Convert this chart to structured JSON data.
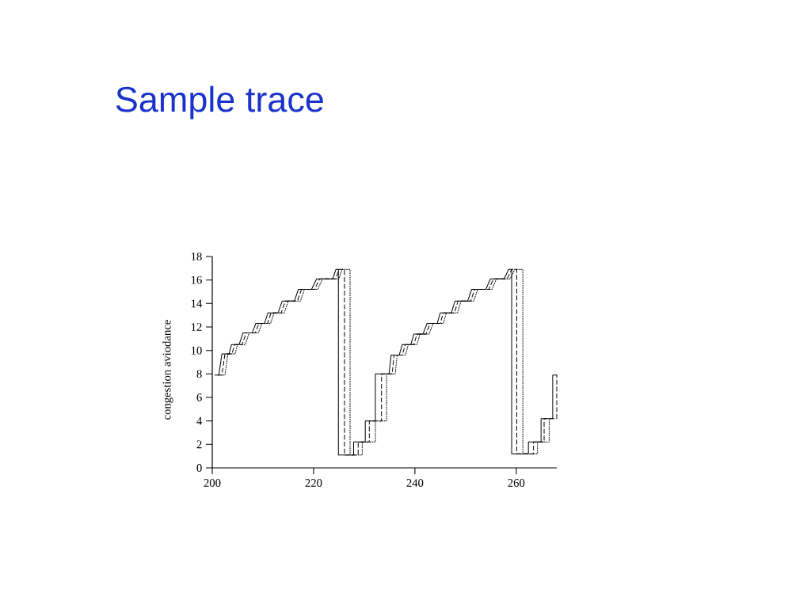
{
  "chart_data": {
    "type": "line",
    "title": "Sample trace",
    "ylabel": "congestion aviodance",
    "xlim": [
      200,
      268
    ],
    "ylim": [
      0,
      18
    ],
    "xticks": [
      200,
      220,
      240,
      260
    ],
    "yticks": [
      0,
      2,
      4,
      6,
      8,
      10,
      12,
      14,
      16,
      18
    ],
    "series": [
      {
        "color": "#000000",
        "line_style": "solid",
        "x": [
          200.5,
          201.3,
          201.9,
          203.3,
          203.8,
          205.3,
          206.1,
          207.9,
          208.6,
          210.3,
          211.0,
          213.0,
          213.8,
          216.2,
          217.0,
          219.6,
          220.6,
          223.8,
          224.4,
          224.9,
          224.9,
          227.9,
          227.9,
          230.2,
          230.2,
          232.2,
          232.2,
          234.9,
          235.3,
          236.9,
          237.5,
          239.2,
          239.8,
          241.6,
          242.4,
          244.4,
          245.0,
          247.2,
          247.9,
          250.4,
          251.2,
          254.0,
          254.9,
          257.6,
          258.5,
          259.1,
          259.1,
          262.4,
          262.4,
          264.9,
          264.9,
          267.2,
          267.2,
          268.0
        ],
        "values": [
          7.9,
          7.9,
          9.7,
          9.7,
          10.5,
          10.5,
          11.5,
          11.5,
          12.3,
          12.3,
          13.2,
          13.2,
          14.2,
          14.2,
          15.2,
          15.2,
          16.1,
          16.1,
          16.9,
          16.9,
          1.1,
          1.1,
          2.2,
          2.2,
          4.0,
          4.0,
          8.0,
          8.0,
          9.6,
          9.6,
          10.5,
          10.5,
          11.4,
          11.4,
          12.3,
          12.3,
          13.2,
          13.2,
          14.2,
          14.2,
          15.2,
          15.2,
          16.1,
          16.1,
          16.9,
          16.9,
          1.2,
          1.2,
          2.2,
          2.2,
          4.2,
          4.2,
          7.9,
          7.9
        ]
      },
      {
        "color": "#000000",
        "line_style": "dashed",
        "x": [
          201.1,
          201.9,
          202.5,
          203.9,
          204.4,
          205.9,
          206.7,
          208.5,
          209.2,
          210.9,
          211.6,
          213.6,
          214.4,
          216.8,
          217.6,
          220.2,
          221.2,
          224.4,
          225.0,
          226.1,
          226.1,
          228.8,
          228.8,
          231.0,
          231.0,
          233.4,
          233.4,
          235.5,
          235.9,
          237.5,
          238.1,
          239.8,
          240.4,
          242.2,
          243.0,
          245.0,
          245.6,
          247.8,
          248.5,
          251.0,
          251.8,
          254.6,
          255.5,
          258.2,
          259.1,
          260.1,
          260.1,
          263.4,
          263.4,
          265.5,
          265.5,
          268.0,
          268.0
        ],
        "values": [
          7.9,
          7.9,
          9.7,
          9.7,
          10.5,
          10.5,
          11.5,
          11.5,
          12.3,
          12.3,
          13.2,
          13.2,
          14.2,
          14.2,
          15.2,
          15.2,
          16.1,
          16.1,
          16.9,
          16.9,
          1.1,
          1.1,
          2.2,
          2.2,
          4.0,
          4.0,
          8.0,
          8.0,
          9.6,
          9.6,
          10.5,
          10.5,
          11.4,
          11.4,
          12.3,
          12.3,
          13.2,
          13.2,
          14.2,
          14.2,
          15.2,
          15.2,
          16.1,
          16.1,
          16.9,
          16.9,
          1.2,
          1.2,
          2.2,
          2.2,
          4.2,
          4.2,
          7.9
        ]
      },
      {
        "color": "#000000",
        "line_style": "dotted",
        "x": [
          201.7,
          202.5,
          203.1,
          204.5,
          205.0,
          206.5,
          207.3,
          209.1,
          209.8,
          211.5,
          212.2,
          214.2,
          215.0,
          217.4,
          218.2,
          220.8,
          221.8,
          225.0,
          225.6,
          227.2,
          227.2,
          229.6,
          229.6,
          232.2,
          232.2,
          234.4,
          234.4,
          236.1,
          236.5,
          238.1,
          238.7,
          240.4,
          241.0,
          242.8,
          243.6,
          245.6,
          246.2,
          248.4,
          249.1,
          251.6,
          252.4,
          255.2,
          256.1,
          258.8,
          259.7,
          261.3,
          261.3,
          264.2,
          264.2,
          266.5,
          266.5
        ],
        "values": [
          7.9,
          7.9,
          9.7,
          9.7,
          10.5,
          10.5,
          11.5,
          11.5,
          12.3,
          12.3,
          13.2,
          13.2,
          14.2,
          14.2,
          15.2,
          15.2,
          16.1,
          16.1,
          16.9,
          16.9,
          1.1,
          1.1,
          2.2,
          2.2,
          4.0,
          4.0,
          8.0,
          8.0,
          9.6,
          9.6,
          10.5,
          10.5,
          11.4,
          11.4,
          12.3,
          12.3,
          13.2,
          13.2,
          14.2,
          14.2,
          15.2,
          15.2,
          16.1,
          16.1,
          16.9,
          16.9,
          1.2,
          1.2,
          2.2,
          2.2,
          4.2
        ]
      }
    ]
  }
}
